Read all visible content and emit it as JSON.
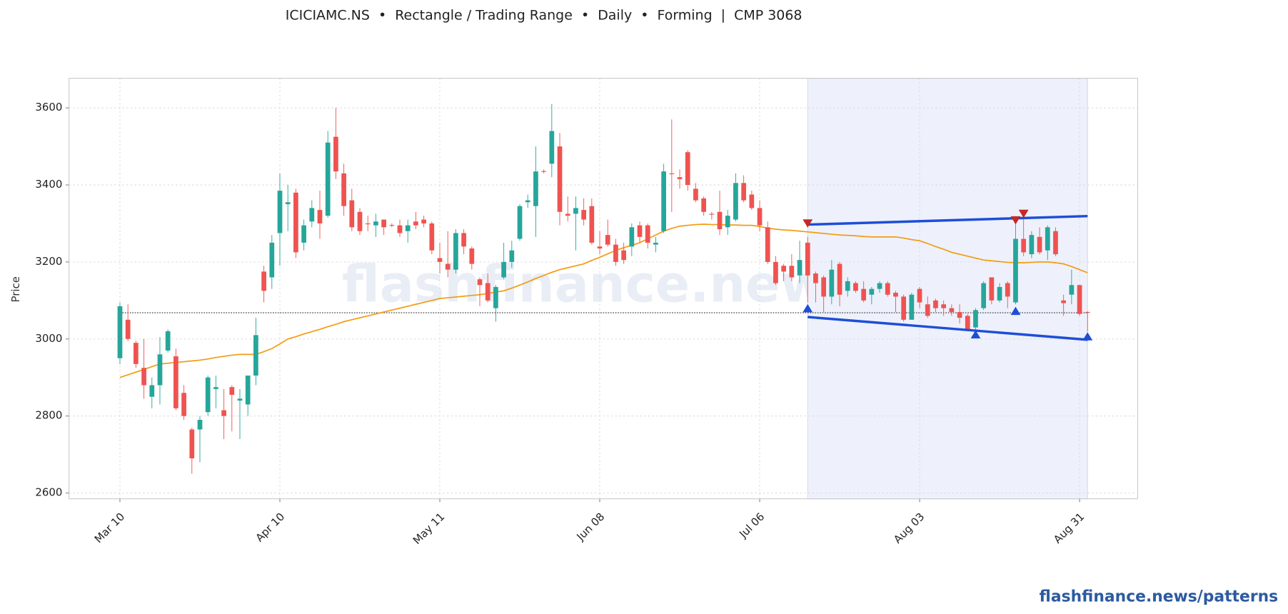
{
  "title": "ICICIAMC.NS  •  Rectangle / Trading Range  •  Daily  •  Forming  |  CMP 3068",
  "watermark": "flashfinance.news",
  "footer": "flashfinance.news/patterns",
  "chart_data": {
    "type": "candlestick",
    "y_label": "Price",
    "categories": [
      "Mar 10",
      null,
      null,
      null,
      null,
      null,
      null,
      null,
      null,
      null,
      null,
      null,
      null,
      null,
      null,
      null,
      null,
      null,
      null,
      null,
      "Apr 10",
      null,
      null,
      null,
      null,
      null,
      null,
      null,
      null,
      null,
      null,
      null,
      null,
      null,
      null,
      null,
      null,
      null,
      null,
      null,
      "May 11",
      null,
      null,
      null,
      null,
      null,
      null,
      null,
      null,
      null,
      null,
      null,
      null,
      null,
      null,
      null,
      null,
      null,
      null,
      null,
      "Jun 08",
      null,
      null,
      null,
      null,
      null,
      null,
      null,
      null,
      null,
      null,
      null,
      null,
      null,
      null,
      null,
      null,
      null,
      null,
      null,
      "Jul 06",
      null,
      null,
      null,
      null,
      null,
      null,
      null,
      null,
      null,
      null,
      null,
      null,
      null,
      null,
      null,
      null,
      null,
      null,
      null,
      "Aug 03",
      null,
      null,
      null,
      null,
      null,
      null,
      null,
      null,
      null,
      null,
      null,
      null,
      null,
      null,
      null,
      null,
      null,
      null,
      null,
      "Aug 31",
      null
    ],
    "open": [
      2950,
      3050,
      2990,
      2925,
      2850,
      2880,
      2970,
      2955,
      2860,
      2765,
      2765,
      2810,
      2870,
      2815,
      2875,
      2840,
      2830,
      2905,
      3175,
      3160,
      3275,
      3350,
      3380,
      3250,
      3305,
      3335,
      3320,
      3525,
      3430,
      3360,
      3330,
      3300,
      3295,
      3310,
      3296,
      3295,
      3280,
      3305,
      3310,
      3300,
      3210,
      3195,
      3180,
      3275,
      3235,
      3155,
      3145,
      3080,
      3160,
      3200,
      3260,
      3355,
      3345,
      3436,
      3455,
      3500,
      3325,
      3325,
      3335,
      3345,
      3240,
      3270,
      3245,
      3230,
      3240,
      3295,
      3295,
      3245,
      3280,
      3430,
      3420,
      3485,
      3390,
      3365,
      3325,
      3330,
      3290,
      3310,
      3405,
      3375,
      3340,
      3290,
      3200,
      3190,
      3190,
      3165,
      3250,
      3170,
      3160,
      3110,
      3195,
      3125,
      3145,
      3130,
      3115,
      3130,
      3145,
      3120,
      3110,
      3050,
      3130,
      3090,
      3100,
      3090,
      3080,
      3070,
      3060,
      3030,
      3080,
      3160,
      3100,
      3145,
      3095,
      3260,
      3220,
      3265,
      3230,
      3280,
      3100,
      3115,
      3140,
      3070
    ],
    "high": [
      3095,
      3090,
      2995,
      3000,
      2900,
      3005,
      3025,
      2975,
      2880,
      2770,
      2800,
      2905,
      2905,
      2870,
      2880,
      2870,
      2905,
      3055,
      3190,
      3270,
      3430,
      3400,
      3390,
      3310,
      3360,
      3385,
      3540,
      3600,
      3455,
      3390,
      3340,
      3320,
      3325,
      3310,
      3300,
      3310,
      3310,
      3330,
      3320,
      3305,
      3250,
      3280,
      3285,
      3285,
      3240,
      3160,
      3170,
      3140,
      3250,
      3255,
      3350,
      3375,
      3500,
      3440,
      3610,
      3535,
      3370,
      3370,
      3365,
      3365,
      3280,
      3310,
      3260,
      3250,
      3300,
      3305,
      3300,
      3265,
      3455,
      3570,
      3440,
      3490,
      3405,
      3370,
      3330,
      3385,
      3335,
      3430,
      3425,
      3385,
      3360,
      3305,
      3215,
      3195,
      3220,
      3255,
      3265,
      3175,
      3165,
      3205,
      3200,
      3160,
      3150,
      3150,
      3135,
      3150,
      3150,
      3125,
      3115,
      3120,
      3135,
      3110,
      3105,
      3100,
      3090,
      3090,
      3065,
      3080,
      3150,
      3160,
      3145,
      3150,
      3300,
      3320,
      3280,
      3290,
      3295,
      3290,
      3115,
      3180,
      3140,
      3072
    ],
    "low": [
      2935,
      2995,
      2925,
      2845,
      2820,
      2830,
      2965,
      2815,
      2790,
      2650,
      2680,
      2800,
      2820,
      2740,
      2760,
      2740,
      2800,
      2880,
      3095,
      3130,
      3190,
      3280,
      3210,
      3230,
      3290,
      3260,
      3315,
      3415,
      3320,
      3280,
      3270,
      3280,
      3265,
      3270,
      3290,
      3265,
      3250,
      3285,
      3290,
      3220,
      3170,
      3160,
      3170,
      3220,
      3180,
      3085,
      3095,
      3045,
      3155,
      3185,
      3255,
      3340,
      3265,
      3430,
      3420,
      3295,
      3305,
      3230,
      3295,
      3245,
      3220,
      3240,
      3190,
      3195,
      3215,
      3250,
      3235,
      3225,
      3275,
      3330,
      3390,
      3385,
      3355,
      3320,
      3310,
      3270,
      3270,
      3305,
      3355,
      3335,
      3280,
      3195,
      3140,
      3150,
      3150,
      3145,
      3095,
      3095,
      3070,
      3090,
      3085,
      3110,
      3120,
      3095,
      3090,
      3120,
      3110,
      3070,
      3045,
      3050,
      3080,
      3055,
      3070,
      3060,
      3060,
      3040,
      3020,
      3015,
      3075,
      3090,
      3095,
      3080,
      3090,
      3215,
      3210,
      3220,
      3205,
      3215,
      3060,
      3090,
      3060,
      3020
    ],
    "close": [
      3085,
      3000,
      2935,
      2880,
      2880,
      2960,
      3020,
      2820,
      2800,
      2690,
      2790,
      2900,
      2875,
      2800,
      2855,
      2845,
      2905,
      3010,
      3125,
      3250,
      3385,
      3355,
      3225,
      3295,
      3340,
      3300,
      3510,
      3435,
      3345,
      3290,
      3280,
      3298,
      3305,
      3290,
      3294,
      3275,
      3295,
      3295,
      3300,
      3230,
      3200,
      3180,
      3275,
      3240,
      3195,
      3140,
      3100,
      3135,
      3200,
      3230,
      3345,
      3360,
      3435,
      3434,
      3540,
      3330,
      3320,
      3340,
      3310,
      3250,
      3235,
      3245,
      3200,
      3205,
      3290,
      3265,
      3250,
      3250,
      3435,
      3428,
      3415,
      3400,
      3360,
      3330,
      3323,
      3285,
      3320,
      3405,
      3360,
      3340,
      3295,
      3200,
      3145,
      3175,
      3160,
      3205,
      3165,
      3145,
      3110,
      3180,
      3115,
      3150,
      3125,
      3100,
      3130,
      3145,
      3115,
      3110,
      3050,
      3115,
      3095,
      3060,
      3080,
      3080,
      3070,
      3055,
      3025,
      3075,
      3145,
      3100,
      3135,
      3110,
      3260,
      3225,
      3270,
      3225,
      3290,
      3220,
      3093,
      3140,
      3065,
      3068
    ],
    "up_color": "#26a69a",
    "down_color": "#ef5350",
    "ma": {
      "color": "#f39c12",
      "values": [
        2900,
        2907,
        2914,
        2921,
        2928,
        2935,
        2937,
        2939,
        2941,
        2943,
        2945,
        2948,
        2952,
        2955,
        2958,
        2960,
        2960,
        2960,
        2967,
        2975,
        2987,
        3000,
        3006,
        3013,
        3019,
        3025,
        3032,
        3038,
        3045,
        3050,
        3055,
        3060,
        3065,
        3070,
        3075,
        3080,
        3085,
        3090,
        3095,
        3100,
        3105,
        3107,
        3109,
        3111,
        3113,
        3115,
        3118,
        3122,
        3125,
        3132,
        3140,
        3148,
        3157,
        3165,
        3173,
        3180,
        3185,
        3190,
        3195,
        3204,
        3212,
        3221,
        3230,
        3237,
        3243,
        3250,
        3260,
        3270,
        3280,
        3287,
        3293,
        3295,
        3297,
        3298,
        3297,
        3297,
        3296,
        3296,
        3295,
        3295,
        3292,
        3288,
        3285,
        3283,
        3282,
        3280,
        3278,
        3276,
        3274,
        3272,
        3270,
        3269,
        3268,
        3266,
        3265,
        3265,
        3265,
        3265,
        3262,
        3258,
        3255,
        3248,
        3240,
        3233,
        3225,
        3220,
        3215,
        3210,
        3205,
        3203,
        3201,
        3199,
        3198,
        3198,
        3199,
        3200,
        3200,
        3198,
        3195,
        3188,
        3180,
        3172
      ]
    },
    "ylim": [
      2585,
      3677
    ],
    "yticks": [
      2600,
      2800,
      3000,
      3200,
      3400,
      3600
    ],
    "grid": true,
    "cmp": 3068,
    "pattern": {
      "range": [
        86,
        121
      ],
      "fill": "#eef1fb",
      "color": "#1d4ed8",
      "upper": {
        "x": [
          86,
          121
        ],
        "values": [
          3297,
          3319
        ]
      },
      "lower": {
        "x": [
          86,
          121
        ],
        "values": [
          3057,
          2998
        ]
      },
      "highs": {
        "color": "#c62828",
        "x": [
          86,
          112,
          113
        ],
        "values": [
          3300,
          3308,
          3325
        ]
      },
      "lows": {
        "color": "#1d4ed8",
        "x": [
          86,
          107,
          112,
          121
        ],
        "values": [
          3080,
          3012,
          3073,
          3007
        ]
      }
    }
  }
}
